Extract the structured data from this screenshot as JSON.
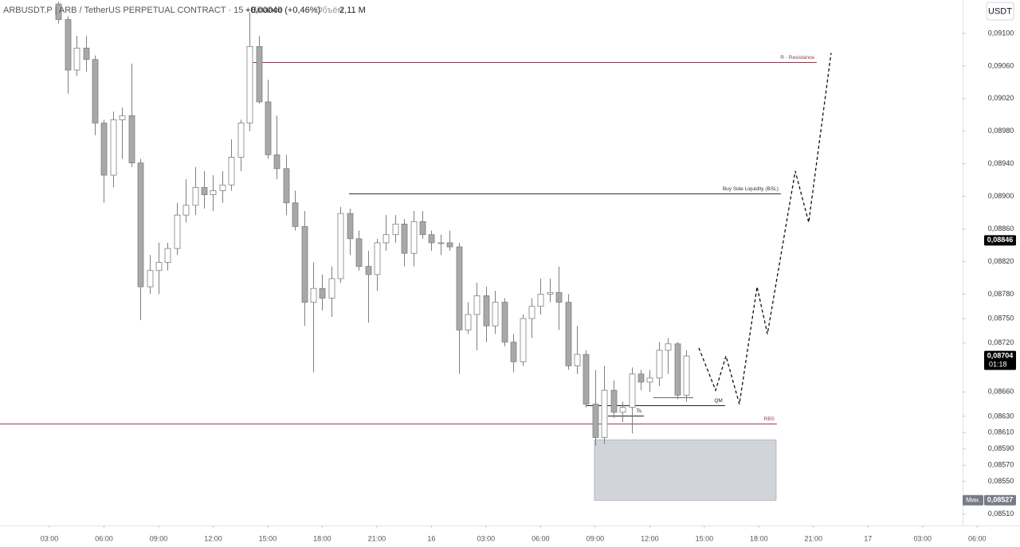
{
  "chart_data": {
    "type": "candlestick",
    "header": {
      "symbol": "ARBUSDT.P | ARB / TetherUS PERPETUAL CONTRACT · 15 · Binance",
      "change": "+0,00040 (+0,46%)",
      "volume_label": "Объём",
      "volume": "2,11 M"
    },
    "currency_button": "USDT",
    "up_color": "#ffffff",
    "down_color": "#a8a8a8",
    "border_color": "#808080",
    "x": [
      3.5,
      4,
      4.5,
      5,
      5.5,
      6,
      6.5,
      7,
      7.5,
      8,
      8.5,
      9,
      9.5,
      10,
      10.5,
      11,
      11.5,
      12,
      12.5,
      13,
      13.5,
      14,
      14.5,
      15,
      15.5,
      16,
      16.5,
      17,
      17.5,
      18,
      18.5,
      19,
      19.5,
      20,
      20.5,
      21,
      21.5,
      22,
      22.5,
      23,
      23.5,
      24,
      24.5,
      25,
      25.5,
      26,
      26.5,
      27,
      27.5,
      28,
      28.5,
      29,
      29.5,
      30,
      30.5,
      31,
      31.5,
      32,
      32.5,
      33,
      33.5,
      34,
      34.5,
      35,
      35.5,
      36,
      36.5,
      37,
      37.5,
      38
    ],
    "open": [
      0.09136,
      0.09117,
      0.09055,
      0.09082,
      0.09068,
      0.0899,
      0.08926,
      0.08994,
      0.08999,
      0.08941,
      0.08789,
      0.08809,
      0.08819,
      0.08836,
      0.08877,
      0.08889,
      0.08911,
      0.08902,
      0.08907,
      0.08914,
      0.08948,
      0.0899,
      0.09084,
      0.09016,
      0.08951,
      0.08934,
      0.08892,
      0.08863,
      0.0877,
      0.08787,
      0.08775,
      0.08799,
      0.08879,
      0.08848,
      0.08814,
      0.08804,
      0.08843,
      0.08853,
      0.08866,
      0.0883,
      0.08869,
      0.08853,
      0.08843,
      0.08843,
      0.08838,
      0.08736,
      0.08755,
      0.08778,
      0.08741,
      0.0877,
      0.08721,
      0.08697,
      0.0875,
      0.08765,
      0.0878,
      0.08782,
      0.0877,
      0.08692,
      0.08706,
      0.08645,
      0.08604,
      0.08662,
      0.08635,
      0.08641,
      0.08682,
      0.08672,
      0.08677,
      0.08711,
      0.08719,
      0.08656
    ],
    "high": [
      0.09139,
      0.09121,
      0.09097,
      0.09097,
      0.09073,
      0.08994,
      0.09004,
      0.09009,
      0.09063,
      0.08946,
      0.08828,
      0.08843,
      0.08843,
      0.08892,
      0.08921,
      0.08936,
      0.08931,
      0.08926,
      0.08931,
      0.0897,
      0.08994,
      0.09126,
      0.09097,
      0.09043,
      0.08999,
      0.08951,
      0.08907,
      0.08882,
      0.08819,
      0.08804,
      0.08814,
      0.08887,
      0.08885,
      0.08858,
      0.08833,
      0.08848,
      0.08877,
      0.08877,
      0.08872,
      0.08882,
      0.08882,
      0.08858,
      0.08853,
      0.08858,
      0.08843,
      0.0877,
      0.08794,
      0.08789,
      0.08784,
      0.08775,
      0.08731,
      0.08755,
      0.08775,
      0.08799,
      0.08799,
      0.08814,
      0.0878,
      0.08741,
      0.08711,
      0.08687,
      0.08692,
      0.08674,
      0.08648,
      0.0869,
      0.08687,
      0.08687,
      0.08721,
      0.08726,
      0.08721,
      0.08711
    ],
    "low": [
      0.09112,
      0.09026,
      0.09048,
      0.09053,
      0.08975,
      0.08892,
      0.08911,
      0.08946,
      0.08936,
      0.08748,
      0.0878,
      0.0878,
      0.08809,
      0.08828,
      0.08868,
      0.08877,
      0.08885,
      0.08882,
      0.08892,
      0.08907,
      0.08931,
      0.0898,
      0.09014,
      0.08946,
      0.08921,
      0.08877,
      0.08858,
      0.08741,
      0.08684,
      0.0876,
      0.08752,
      0.08794,
      0.08828,
      0.08809,
      0.08745,
      0.08784,
      0.08833,
      0.08843,
      0.08814,
      0.08814,
      0.08848,
      0.08833,
      0.08828,
      0.08833,
      0.08682,
      0.08731,
      0.08711,
      0.08721,
      0.08731,
      0.08716,
      0.08684,
      0.08692,
      0.08726,
      0.08755,
      0.0877,
      0.08736,
      0.08687,
      0.08682,
      0.08641,
      0.08594,
      0.08596,
      0.08628,
      0.08623,
      0.08609,
      0.08662,
      0.0866,
      0.08667,
      0.08682,
      0.08651,
      0.08648
    ],
    "close": [
      0.09117,
      0.09055,
      0.09082,
      0.09068,
      0.0899,
      0.08926,
      0.08994,
      0.08999,
      0.08941,
      0.08789,
      0.08809,
      0.08819,
      0.08836,
      0.08877,
      0.08889,
      0.08911,
      0.08902,
      0.08907,
      0.08914,
      0.08948,
      0.0899,
      0.09084,
      0.09016,
      0.08951,
      0.08934,
      0.08892,
      0.08863,
      0.0877,
      0.08787,
      0.08775,
      0.08799,
      0.08879,
      0.08848,
      0.08814,
      0.08804,
      0.08843,
      0.08853,
      0.08866,
      0.0883,
      0.08869,
      0.08853,
      0.08843,
      0.08843,
      0.08838,
      0.08736,
      0.08755,
      0.08778,
      0.08741,
      0.0877,
      0.08721,
      0.08697,
      0.0875,
      0.08765,
      0.0878,
      0.08782,
      0.0877,
      0.08692,
      0.08706,
      0.08645,
      0.08604,
      0.08662,
      0.08635,
      0.08641,
      0.08682,
      0.08672,
      0.08677,
      0.08711,
      0.08719,
      0.08656,
      0.08704
    ],
    "xlim": [
      0.284,
      53.2
    ],
    "ylim": [
      0.08496,
      0.09141
    ],
    "xticks": [
      {
        "value": 3,
        "label": "03:00"
      },
      {
        "value": 6,
        "label": "06:00"
      },
      {
        "value": 9,
        "label": "09:00"
      },
      {
        "value": 12,
        "label": "12:00"
      },
      {
        "value": 15,
        "label": "15:00"
      },
      {
        "value": 18,
        "label": "18:00"
      },
      {
        "value": 21,
        "label": "21:00"
      },
      {
        "value": 24,
        "label": "16"
      },
      {
        "value": 27,
        "label": "03:00"
      },
      {
        "value": 30,
        "label": "06:00"
      },
      {
        "value": 33,
        "label": "09:00"
      },
      {
        "value": 36,
        "label": "12:00"
      },
      {
        "value": 39,
        "label": "15:00"
      },
      {
        "value": 42,
        "label": "18:00"
      },
      {
        "value": 45,
        "label": "21:00"
      },
      {
        "value": 48,
        "label": "17"
      },
      {
        "value": 51,
        "label": "03:00"
      },
      {
        "value": 54,
        "label": "06:00"
      }
    ],
    "yticks": [
      {
        "value": 0.091,
        "label": "0,09100"
      },
      {
        "value": 0.0906,
        "label": "0,09060"
      },
      {
        "value": 0.0902,
        "label": "0,09020"
      },
      {
        "value": 0.0898,
        "label": "0,08980"
      },
      {
        "value": 0.0894,
        "label": "0,08940"
      },
      {
        "value": 0.089,
        "label": "0,08900"
      },
      {
        "value": 0.0886,
        "label": "0,08860"
      },
      {
        "value": 0.0882,
        "label": "0,08820"
      },
      {
        "value": 0.0878,
        "label": "0,08780"
      },
      {
        "value": 0.0875,
        "label": "0,08750"
      },
      {
        "value": 0.0872,
        "label": "0,08720"
      },
      {
        "value": 0.0866,
        "label": "0,08660"
      },
      {
        "value": 0.0863,
        "label": "0,08630"
      },
      {
        "value": 0.0861,
        "label": "0,08610"
      },
      {
        "value": 0.0859,
        "label": "0,08590"
      },
      {
        "value": 0.0857,
        "label": "0,08570"
      },
      {
        "value": 0.0855,
        "label": "0,08550"
      },
      {
        "value": 0.0851,
        "label": "0,08510"
      }
    ],
    "grid": false,
    "levels": [
      {
        "label": "R - Resistance",
        "value": 0.09065,
        "x": [
          14.13,
          45.18
        ],
        "color": "#8a3b4c"
      },
      {
        "label": "Buy Side Liquidity (BSL)",
        "value": 0.08904,
        "x": [
          19.47,
          43.21
        ],
        "color": "#333333"
      },
      {
        "label": "RBS",
        "value": 0.08621,
        "x": [
          0.284,
          42.99
        ],
        "color": "#9b3a55"
      },
      {
        "label": "QM",
        "value": 0.08644,
        "x": [
          32.48,
          40.14
        ],
        "color": "#222222"
      },
      {
        "label": "Ts",
        "value": 0.08631,
        "x": [
          33.71,
          35.68
        ],
        "color": "#222222"
      },
      {
        "value": 0.08653,
        "x": [
          36.2,
          38.39
        ],
        "color": "#666666"
      }
    ],
    "zone": {
      "x": [
        32.96,
        42.95
      ],
      "y": [
        0.08527,
        0.08601
      ],
      "color": "#d1d4d9"
    },
    "projection": {
      "x": [
        38.7,
        39.62,
        40.19,
        40.93,
        41.9,
        42.47,
        44.0,
        44.74,
        45.97
      ],
      "y": [
        0.08714,
        0.08662,
        0.08704,
        0.08645,
        0.08789,
        0.08731,
        0.08931,
        0.08868,
        0.09076
      ],
      "color": "#111111"
    },
    "price_tags": [
      {
        "value": 0.08846,
        "label": "0,08846",
        "color": "#000000"
      },
      {
        "value": 0.08704,
        "label": "0,08704",
        "countdown": "01:18",
        "color": "#000000"
      },
      {
        "value": 0.08527,
        "label": "0,08527",
        "prefix": "Мин.",
        "color": "#787b86"
      }
    ]
  }
}
